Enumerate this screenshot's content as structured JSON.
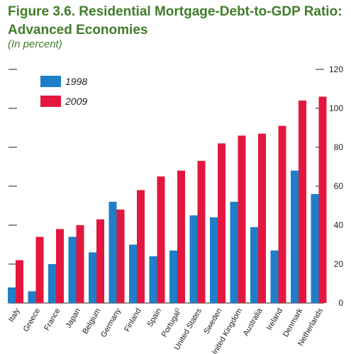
{
  "chart_data": {
    "type": "bar",
    "title": "Figure 3.6. Residential Mortgage-Debt-to-GDP Ratio: Advanced Economies",
    "subtitle": "(In percent)",
    "categories": [
      "Italy",
      "Greece",
      "France",
      "Japan",
      "Belgium",
      "Germany",
      "Finland",
      "Spain",
      "Portugal",
      "United States",
      "Sweden",
      "United Kingdom",
      "Australia",
      "Ireland",
      "Denmark",
      "Netherlands"
    ],
    "category_superscripts": {
      "Portugal": "1"
    },
    "series": [
      {
        "name": "1998",
        "color": "#1e7ec8",
        "values": [
          8,
          6,
          20,
          34,
          26,
          52,
          30,
          24,
          27,
          45,
          44,
          52,
          39,
          27,
          68,
          56
        ]
      },
      {
        "name": "2009",
        "color": "#e3173e",
        "values": [
          22,
          34,
          38,
          40,
          43,
          48,
          58,
          65,
          68,
          73,
          82,
          86,
          87,
          91,
          104,
          106
        ]
      }
    ],
    "ylim": [
      0,
      120
    ],
    "yticks": [
      0,
      20,
      40,
      60,
      80,
      100,
      120
    ],
    "ytick_labels": [
      "0",
      "20",
      "40",
      "60",
      "80",
      "100",
      "120"
    ],
    "grid": false,
    "legend_position": "top-left"
  }
}
